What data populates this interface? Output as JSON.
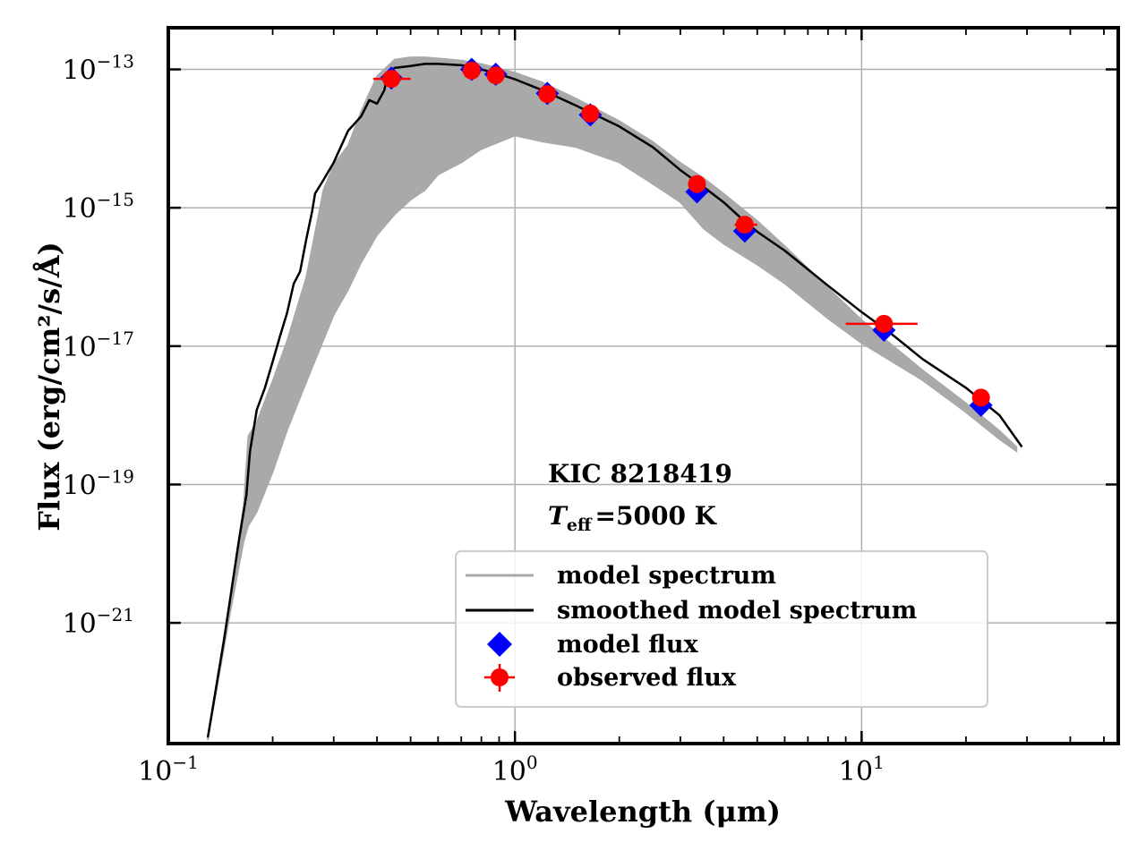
{
  "chart_data": {
    "type": "scatter",
    "title": "",
    "xlabel": "Wavelength (μm)",
    "ylabel": "Flux (erg/cm²/s/Å)",
    "xscale": "log",
    "yscale": "log",
    "xlim": [
      0.1,
      55
    ],
    "ylim": [
      1.8e-23,
      4e-13
    ],
    "grid": true,
    "x_ticks": [
      {
        "value": 0.1,
        "base": "10",
        "exp": "−1"
      },
      {
        "value": 1,
        "base": "10",
        "exp": "0"
      },
      {
        "value": 10,
        "base": "10",
        "exp": "1"
      }
    ],
    "y_ticks": [
      {
        "value": 1e-13,
        "base": "10",
        "exp": "−13"
      },
      {
        "value": 1e-15,
        "base": "10",
        "exp": "−15"
      },
      {
        "value": 1e-17,
        "base": "10",
        "exp": "−17"
      },
      {
        "value": 1e-19,
        "base": "10",
        "exp": "−19"
      },
      {
        "value": 1e-21,
        "base": "10",
        "exp": "−21"
      }
    ],
    "annotation": {
      "object_label": "KIC 8218419",
      "teff_label": "T",
      "teff_sub": "eff",
      "teff_value": "=5000 K"
    },
    "legend_position": "lower-center",
    "colors": {
      "model_spectrum": "#a9a9a9",
      "smoothed_spectrum": "#000000",
      "model_flux": "#0000ff",
      "observed_flux": "#ff0000"
    },
    "series": [
      {
        "name": "model spectrum",
        "kind": "band",
        "x": [
          0.13,
          0.15,
          0.165,
          0.17,
          0.18,
          0.2,
          0.22,
          0.25,
          0.28,
          0.3,
          0.33,
          0.36,
          0.4,
          0.45,
          0.5,
          0.55,
          0.6,
          0.7,
          0.8,
          1.0,
          1.2,
          1.5,
          2.0,
          2.5,
          3.0,
          3.5,
          4.0,
          5.0,
          6.0,
          8.0,
          10.0,
          15.0,
          20.0,
          25.0,
          28.0
        ],
        "upper": [
          2.2e-23,
          2e-21,
          5e-20,
          5e-19,
          8e-19,
          3.2e-18,
          1.2e-17,
          1e-16,
          1.8e-15,
          4.2e-15,
          8e-15,
          2.5e-14,
          8e-14,
          1.4e-13,
          1.5e-13,
          1.5e-13,
          1.45e-13,
          1.35e-13,
          1.2e-13,
          9e-14,
          6.5e-14,
          3.8e-14,
          1.8e-14,
          9e-15,
          4.5e-15,
          2.7e-15,
          1.6e-15,
          6.5e-16,
          2.8e-16,
          7e-17,
          2.4e-17,
          4.5e-18,
          1.5e-18,
          6e-19,
          3.5e-19
        ],
        "lower": [
          2e-23,
          1.2e-21,
          1.5e-20,
          2.5e-20,
          4e-20,
          1.5e-19,
          6e-19,
          3e-18,
          1.2e-17,
          2.8e-17,
          6.5e-17,
          1.6e-16,
          4e-16,
          8e-16,
          1.3e-15,
          1.8e-15,
          3e-15,
          4.5e-15,
          7e-15,
          1.1e-14,
          9e-15,
          7.5e-15,
          4.5e-15,
          2.2e-15,
          1.2e-15,
          5e-16,
          3e-16,
          1.5e-16,
          8e-17,
          2.5e-17,
          1.1e-17,
          3.2e-18,
          1.1e-18,
          4.5e-19,
          3e-19
        ]
      },
      {
        "name": "smoothed model spectrum",
        "kind": "line",
        "x": [
          0.13,
          0.145,
          0.16,
          0.168,
          0.172,
          0.18,
          0.19,
          0.2,
          0.21,
          0.22,
          0.23,
          0.24,
          0.25,
          0.26,
          0.265,
          0.28,
          0.3,
          0.33,
          0.36,
          0.38,
          0.4,
          0.42,
          0.43,
          0.45,
          0.5,
          0.55,
          0.6,
          0.7,
          0.8,
          0.9,
          1.0,
          1.2,
          1.5,
          2.0,
          2.5,
          3.0,
          3.5,
          4.0,
          4.5,
          5.0,
          6.0,
          8.0,
          10.0,
          12.0,
          15.0,
          20.0,
          25.0,
          29.0
        ],
        "y": [
          2.2e-23,
          6e-22,
          1.6e-20,
          7e-20,
          3e-19,
          1.2e-18,
          2.5e-18,
          6e-18,
          1.4e-17,
          3e-17,
          8e-17,
          1.2e-16,
          3.5e-16,
          9e-16,
          1.6e-15,
          2.5e-15,
          4.5e-15,
          1.3e-14,
          2.1e-14,
          3.6e-14,
          3.2e-14,
          5e-14,
          9e-14,
          1.05e-13,
          1.12e-13,
          1.2e-13,
          1.2e-13,
          1.15e-13,
          1e-13,
          8.5e-14,
          7.2e-14,
          5e-14,
          3e-14,
          1.5e-14,
          7.5e-15,
          3.5e-15,
          2e-15,
          1.2e-15,
          7e-16,
          4.5e-16,
          2.4e-16,
          7.5e-17,
          3.1e-17,
          1.6e-17,
          6.5e-18,
          2.5e-18,
          1e-18,
          3.5e-19
        ]
      },
      {
        "name": "model flux",
        "kind": "markers",
        "marker": "diamond",
        "x": [
          0.44,
          0.75,
          0.88,
          1.24,
          1.65,
          3.35,
          4.6,
          11.6,
          22.1
        ],
        "y": [
          7.5e-14,
          1e-13,
          8.5e-14,
          4.5e-14,
          2.2e-14,
          1.7e-15,
          4.6e-16,
          1.7e-17,
          1.4e-18
        ]
      },
      {
        "name": "observed flux",
        "kind": "errorbar",
        "marker": "circle",
        "x": [
          0.44,
          0.75,
          0.88,
          1.24,
          1.65,
          3.35,
          4.6,
          11.6,
          22.1
        ],
        "y": [
          7.3e-14,
          9.6e-14,
          8.2e-14,
          4.4e-14,
          2.3e-14,
          2.2e-15,
          5.7e-16,
          2.1e-17,
          1.8e-18
        ],
        "x_low": [
          0.39,
          0.745,
          0.875,
          1.235,
          1.645,
          3.2,
          4.3,
          9.0,
          21.6
        ],
        "x_high": [
          0.5,
          0.755,
          0.885,
          1.245,
          1.655,
          3.55,
          5.0,
          14.5,
          22.6
        ]
      }
    ]
  }
}
